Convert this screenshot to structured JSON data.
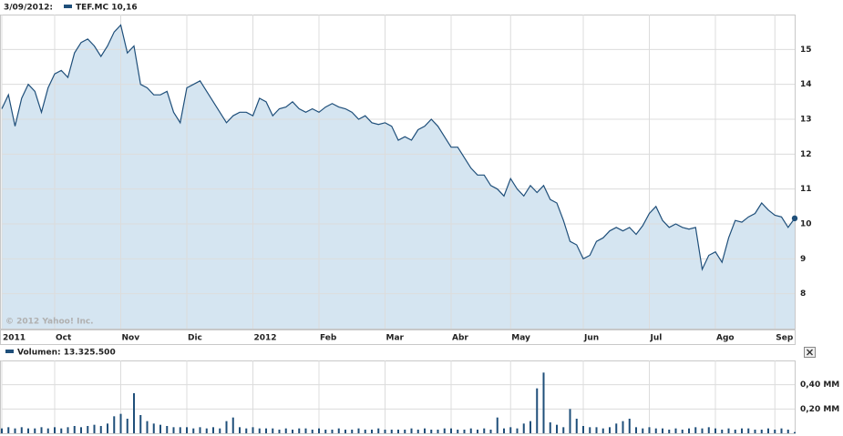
{
  "chart_data": [
    {
      "type": "area",
      "date": "3/09/2012:",
      "credit": "© 2012 Yahoo! Inc.",
      "categories": [
        "2011",
        null,
        null,
        null,
        null,
        null,
        null,
        null,
        "Oct",
        null,
        null,
        null,
        null,
        null,
        null,
        null,
        null,
        null,
        "Nov",
        null,
        null,
        null,
        null,
        null,
        null,
        null,
        null,
        null,
        "Dic",
        null,
        null,
        null,
        null,
        null,
        null,
        null,
        null,
        null,
        "2012",
        null,
        null,
        null,
        null,
        null,
        null,
        null,
        null,
        null,
        "Feb",
        null,
        null,
        null,
        null,
        null,
        null,
        null,
        null,
        null,
        "Mar",
        null,
        null,
        null,
        null,
        null,
        null,
        null,
        null,
        null,
        "Abr",
        null,
        null,
        null,
        null,
        null,
        null,
        null,
        null,
        "May",
        null,
        null,
        null,
        null,
        null,
        null,
        null,
        null,
        null,
        null,
        "Jun",
        null,
        null,
        null,
        null,
        null,
        null,
        null,
        null,
        null,
        "Jul",
        null,
        null,
        null,
        null,
        null,
        null,
        null,
        null,
        null,
        "Ago",
        null,
        null,
        null,
        null,
        null,
        null,
        null,
        null,
        "Sep",
        null,
        null,
        null
      ],
      "series": [
        {
          "name": "TEF.MC 10,16",
          "color": "#1f4f7a",
          "fill": "#d5e5f1",
          "values": [
            13.3,
            13.7,
            12.8,
            13.6,
            14.0,
            13.8,
            13.2,
            13.9,
            14.3,
            14.4,
            14.2,
            14.9,
            15.2,
            15.3,
            15.1,
            14.8,
            15.1,
            15.5,
            15.7,
            14.9,
            15.1,
            14.0,
            13.9,
            13.7,
            13.7,
            13.8,
            13.2,
            12.9,
            13.9,
            14.0,
            14.1,
            13.8,
            13.5,
            13.2,
            12.9,
            13.1,
            13.2,
            13.2,
            13.1,
            13.6,
            13.5,
            13.1,
            13.3,
            13.35,
            13.5,
            13.3,
            13.2,
            13.3,
            13.2,
            13.35,
            13.45,
            13.35,
            13.3,
            13.2,
            13.0,
            13.1,
            12.9,
            12.85,
            12.9,
            12.8,
            12.4,
            12.5,
            12.4,
            12.7,
            12.8,
            13.0,
            12.8,
            12.5,
            12.2,
            12.2,
            11.9,
            11.6,
            11.4,
            11.4,
            11.1,
            11.0,
            10.8,
            11.3,
            11.0,
            10.8,
            11.1,
            10.9,
            11.1,
            10.7,
            10.6,
            10.1,
            9.5,
            9.4,
            9.0,
            9.1,
            9.5,
            9.6,
            9.8,
            9.9,
            9.8,
            9.9,
            9.7,
            9.95,
            10.3,
            10.5,
            10.1,
            9.9,
            10.0,
            9.9,
            9.85,
            9.9,
            8.7,
            9.1,
            9.2,
            8.9,
            9.6,
            10.1,
            10.05,
            10.2,
            10.3,
            10.6,
            10.4,
            10.25,
            10.2,
            9.9,
            10.16
          ]
        }
      ],
      "ylim": [
        7,
        16
      ],
      "yticks": [
        8,
        9,
        10,
        11,
        12,
        13,
        14,
        15
      ],
      "grid": true
    },
    {
      "type": "bar",
      "series": [
        {
          "name": "Volumen: 13.325.500",
          "color": "#1f4f7a",
          "values": [
            0.04,
            0.05,
            0.04,
            0.05,
            0.04,
            0.04,
            0.05,
            0.04,
            0.05,
            0.04,
            0.05,
            0.06,
            0.05,
            0.06,
            0.07,
            0.06,
            0.08,
            0.14,
            0.16,
            0.12,
            0.33,
            0.15,
            0.1,
            0.08,
            0.07,
            0.06,
            0.05,
            0.05,
            0.05,
            0.04,
            0.05,
            0.04,
            0.05,
            0.04,
            0.1,
            0.13,
            0.05,
            0.04,
            0.05,
            0.04,
            0.04,
            0.04,
            0.03,
            0.04,
            0.03,
            0.04,
            0.04,
            0.03,
            0.04,
            0.03,
            0.03,
            0.04,
            0.03,
            0.03,
            0.04,
            0.03,
            0.03,
            0.04,
            0.03,
            0.03,
            0.03,
            0.03,
            0.04,
            0.03,
            0.04,
            0.03,
            0.03,
            0.04,
            0.04,
            0.03,
            0.03,
            0.04,
            0.03,
            0.04,
            0.03,
            0.13,
            0.04,
            0.05,
            0.04,
            0.08,
            0.1,
            0.37,
            0.5,
            0.09,
            0.07,
            0.05,
            0.2,
            0.12,
            0.06,
            0.05,
            0.05,
            0.04,
            0.05,
            0.08,
            0.1,
            0.12,
            0.05,
            0.04,
            0.05,
            0.04,
            0.04,
            0.03,
            0.04,
            0.03,
            0.04,
            0.05,
            0.04,
            0.05,
            0.04,
            0.03,
            0.04,
            0.03,
            0.04,
            0.04,
            0.03,
            0.03,
            0.04,
            0.03,
            0.04,
            0.03,
            0.01
          ]
        }
      ],
      "ylim": [
        0,
        0.6
      ],
      "yticks": [
        {
          "value": 0.2,
          "label": "0,20 MM"
        },
        {
          "value": 0.4,
          "label": "0,40 MM"
        }
      ],
      "grid": true
    }
  ]
}
